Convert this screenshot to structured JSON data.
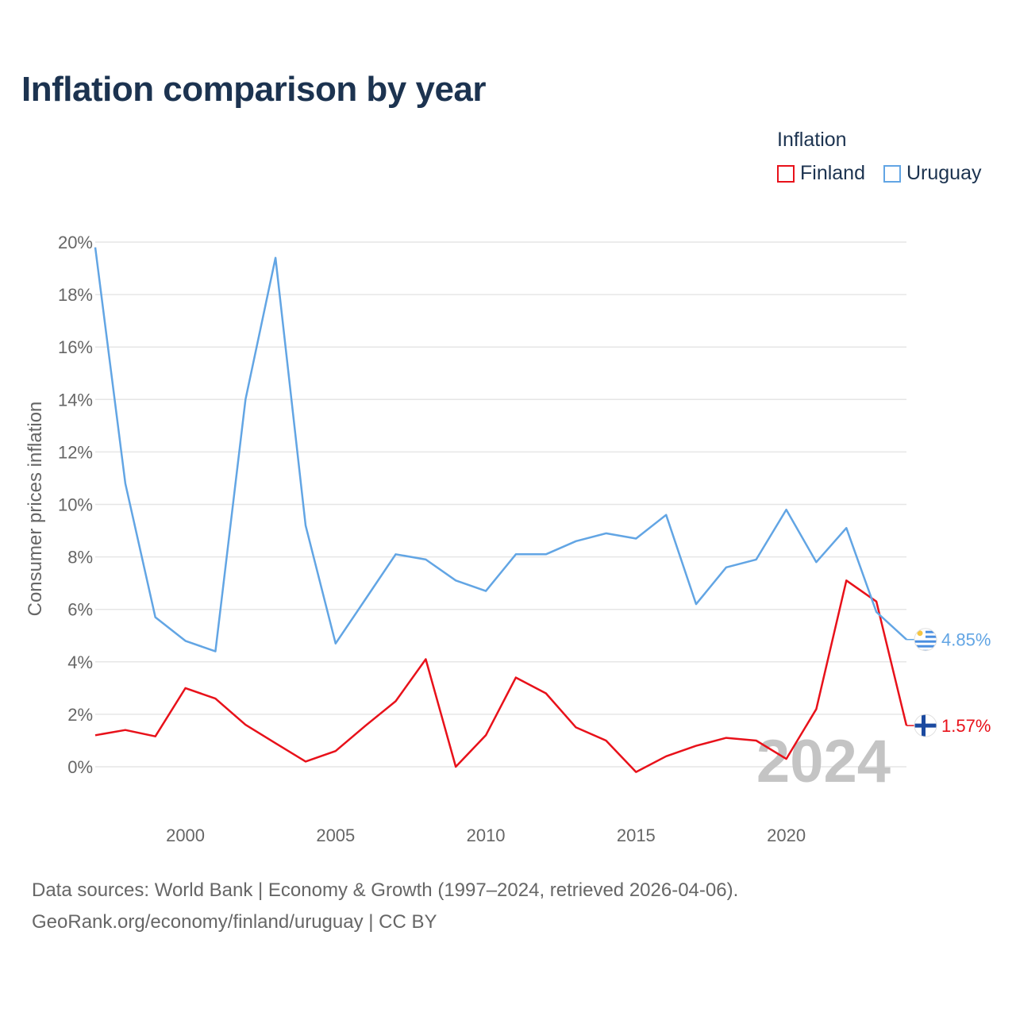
{
  "title": "Inflation comparison by year",
  "legend": {
    "title": "Inflation",
    "items": [
      {
        "label": "Finland",
        "color": "#e8111a"
      },
      {
        "label": "Uruguay",
        "color": "#62a5e4"
      }
    ]
  },
  "chart_data": {
    "type": "line",
    "ylabel": "Consumer prices inflation",
    "xlabel": "",
    "ylim": [
      0,
      20
    ],
    "xlim": [
      1997,
      2024
    ],
    "y_ticks": [
      0,
      2,
      4,
      6,
      8,
      10,
      12,
      14,
      16,
      18,
      20
    ],
    "y_tick_labels": [
      "0%",
      "2%",
      "4%",
      "6%",
      "8%",
      "10%",
      "12%",
      "14%",
      "16%",
      "18%",
      "20%"
    ],
    "x_ticks": [
      2000,
      2005,
      2010,
      2015,
      2020
    ],
    "x_tick_labels": [
      "2000",
      "2005",
      "2010",
      "2015",
      "2020"
    ],
    "x": [
      1997,
      1998,
      1999,
      2000,
      2001,
      2002,
      2003,
      2004,
      2005,
      2006,
      2007,
      2008,
      2009,
      2010,
      2011,
      2012,
      2013,
      2014,
      2015,
      2016,
      2017,
      2018,
      2019,
      2020,
      2021,
      2022,
      2023,
      2024
    ],
    "series": [
      {
        "name": "Finland",
        "color": "#e8111a",
        "end_label": "1.57%",
        "values": [
          1.2,
          1.4,
          1.16,
          3.0,
          2.6,
          1.6,
          0.9,
          0.2,
          0.6,
          1.57,
          2.5,
          4.1,
          0.0,
          1.2,
          3.4,
          2.8,
          1.5,
          1.0,
          -0.2,
          0.4,
          0.8,
          1.1,
          1.0,
          0.3,
          2.2,
          7.1,
          6.3,
          1.57
        ]
      },
      {
        "name": "Uruguay",
        "color": "#62a5e4",
        "end_label": "4.85%",
        "values": [
          19.8,
          10.8,
          5.7,
          4.8,
          4.4,
          14.0,
          19.4,
          9.2,
          4.7,
          6.4,
          8.1,
          7.9,
          7.1,
          6.7,
          8.1,
          8.1,
          8.6,
          8.9,
          8.7,
          9.6,
          6.2,
          7.6,
          7.9,
          9.8,
          7.8,
          9.1,
          5.9,
          4.85
        ]
      }
    ],
    "watermark": "2024"
  },
  "source": {
    "line1": "Data sources: World Bank | Economy & Growth (1997–2024, retrieved 2026-04-06).",
    "line2": "GeoRank.org/economy/finland/uruguay | CC BY"
  }
}
